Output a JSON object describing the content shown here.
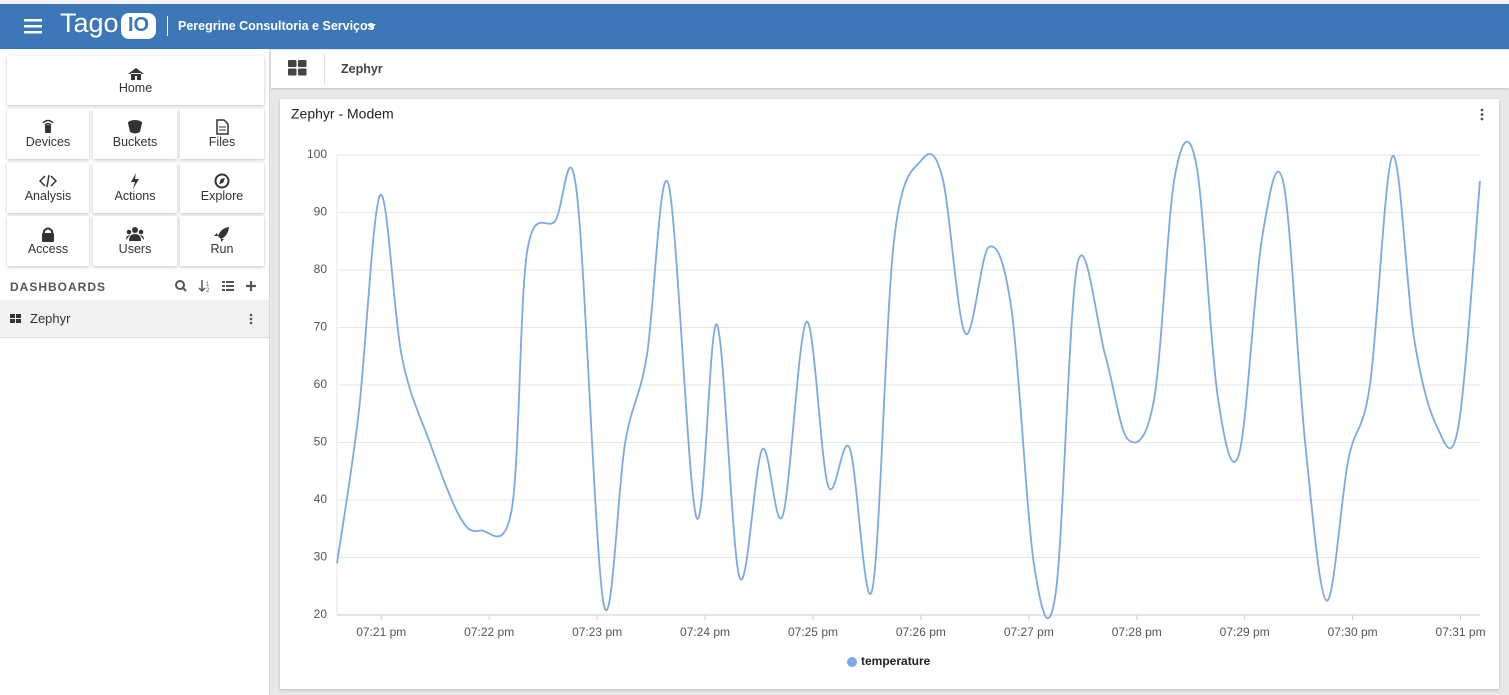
{
  "header": {
    "brand": "Tago",
    "brand_badge": "IO",
    "account": "Peregrine Consultoria e Serviços"
  },
  "sidebar": {
    "buttons": [
      "Home",
      "Devices",
      "Buckets",
      "Files",
      "Analysis",
      "Actions",
      "Explore",
      "Access",
      "Users",
      "Run"
    ],
    "section_title": "DASHBOARDS",
    "dashboards": [
      "Zephyr"
    ]
  },
  "breadcrumb": "Zephyr",
  "chart_data": {
    "type": "line",
    "title": "Zephyr - Modem",
    "x": [
      1160.59,
      1160.79,
      1160.99,
      1161.19,
      1161.45,
      1161.73,
      1161.92,
      1162.21,
      1162.35,
      1162.61,
      1162.81,
      1163.06,
      1163.26,
      1163.46,
      1163.66,
      1163.92,
      1164.11,
      1164.32,
      1164.53,
      1164.72,
      1164.94,
      1165.14,
      1165.34,
      1165.55,
      1165.75,
      1166.0,
      1166.2,
      1166.41,
      1166.63,
      1166.84,
      1167.05,
      1167.25,
      1167.45,
      1167.71,
      1167.92,
      1168.16,
      1168.35,
      1168.55,
      1168.75,
      1168.95,
      1169.16,
      1169.36,
      1169.56,
      1169.76,
      1169.96,
      1170.16,
      1170.37,
      1170.57,
      1170.78,
      1170.98,
      1171.18
    ],
    "series": [
      {
        "name": "temperature",
        "color": "#7aaae3",
        "values": [
          29,
          55,
          93,
          65,
          50,
          37,
          34.7,
          38.5,
          83,
          88.5,
          93.7,
          22,
          50,
          65,
          95,
          37,
          70.5,
          26.5,
          48.8,
          37.3,
          71,
          42.5,
          49,
          24.5,
          85,
          99,
          96,
          69,
          84,
          73,
          28.5,
          24,
          81,
          65,
          50.5,
          57.5,
          96,
          98.5,
          58,
          48.2,
          85.5,
          95,
          50,
          22.5,
          47,
          60,
          99.8,
          68,
          52.8,
          52.8,
          95.5
        ]
      }
    ],
    "xlim": [
      1160.59,
      1171.18
    ],
    "xticks": [
      {
        "value": 1161,
        "label": "07:21 pm"
      },
      {
        "value": 1162,
        "label": "07:22 pm"
      },
      {
        "value": 1163,
        "label": "07:23 pm"
      },
      {
        "value": 1164,
        "label": "07:24 pm"
      },
      {
        "value": 1165,
        "label": "07:25 pm"
      },
      {
        "value": 1166,
        "label": "07:26 pm"
      },
      {
        "value": 1167,
        "label": "07:27 pm"
      },
      {
        "value": 1168,
        "label": "07:28 pm"
      },
      {
        "value": 1169,
        "label": "07:29 pm"
      },
      {
        "value": 1170,
        "label": "07:30 pm"
      },
      {
        "value": 1171,
        "label": "07:31 pm"
      }
    ],
    "ylim": [
      20,
      100
    ],
    "yticks": [
      20,
      30,
      40,
      50,
      60,
      70,
      80,
      90,
      100
    ],
    "grid": true,
    "legend": "bottom"
  }
}
